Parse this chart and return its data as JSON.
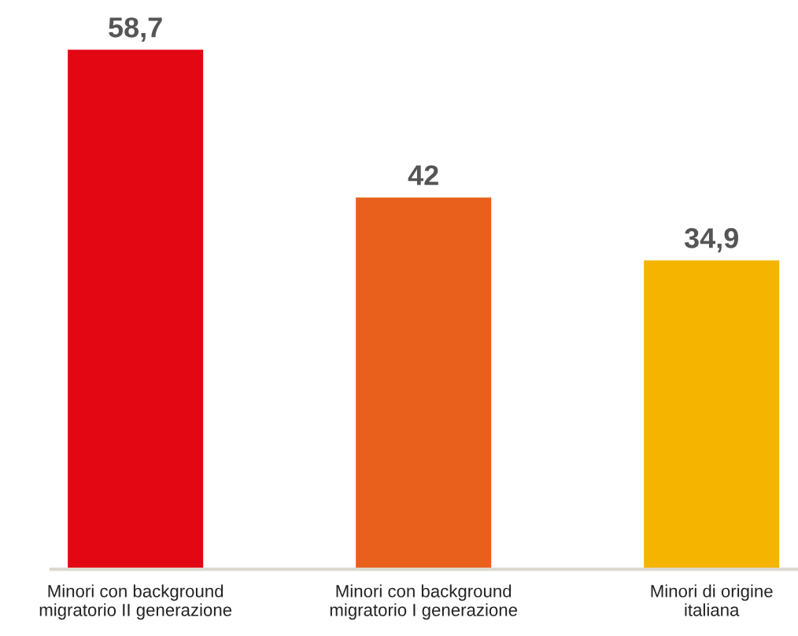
{
  "chart_data": {
    "type": "bar",
    "categories": [
      "Minori con background\nmigratorio II generazione",
      "Minori con background\nmigratorio I generazione",
      "Minori di origine\nitaliana"
    ],
    "values": [
      58.7,
      42,
      34.9
    ],
    "colors": [
      "#e30613",
      "#e8601c",
      "#f5b400"
    ],
    "value_labels": [
      "58,7",
      "42",
      "34,9"
    ],
    "grid": false,
    "legend": false
  }
}
